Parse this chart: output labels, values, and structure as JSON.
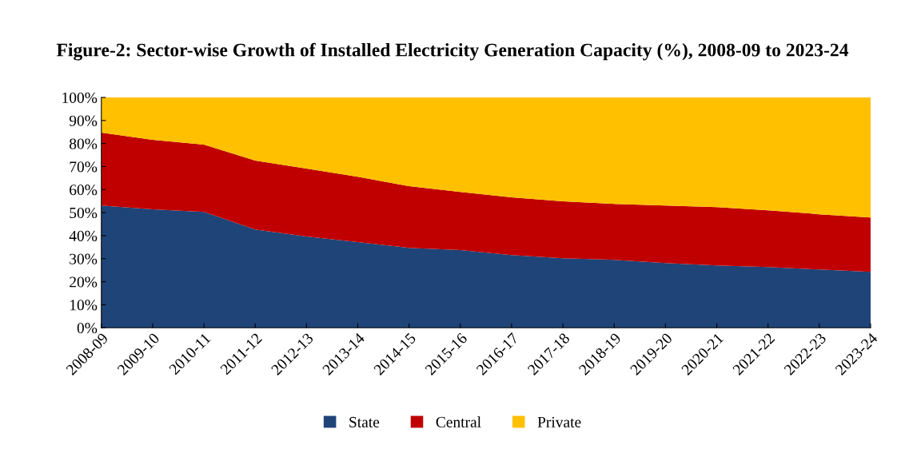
{
  "chart_data": {
    "type": "area",
    "stacked": true,
    "title": "Figure-2: Sector-wise Growth of Installed Electricity Generation Capacity (%), 2008-09 to 2023-24",
    "categories": [
      "2008-09",
      "2009-10",
      "2010-11",
      "2011-12",
      "2012-13",
      "2013-14",
      "2014-15",
      "2015-16",
      "2016-17",
      "2017-18",
      "2018-19",
      "2019-20",
      "2020-21",
      "2021-22",
      "2022-23",
      "2023-24"
    ],
    "series": [
      {
        "name": "State",
        "color": "#1f4478",
        "values": [
          53.1,
          51.4,
          50.3,
          42.7,
          39.6,
          37.2,
          34.7,
          33.7,
          31.6,
          30.2,
          29.5,
          28.1,
          27.1,
          26.4,
          25.3,
          24.3
        ]
      },
      {
        "name": "Central",
        "color": "#c00000",
        "values": [
          31.6,
          30.2,
          29.2,
          29.9,
          29.5,
          28.4,
          26.8,
          25.3,
          25.0,
          24.7,
          24.3,
          25.0,
          25.3,
          24.6,
          24.0,
          23.6
        ]
      },
      {
        "name": "Private",
        "color": "#ffc000",
        "values": [
          15.3,
          18.4,
          20.5,
          27.4,
          30.9,
          34.4,
          38.5,
          41.0,
          43.4,
          45.1,
          46.2,
          46.9,
          47.6,
          49.0,
          50.7,
          52.1
        ]
      }
    ],
    "ylim": [
      0,
      100
    ],
    "yticks": [
      {
        "value": 0,
        "label": "0%"
      },
      {
        "value": 10,
        "label": "10%"
      },
      {
        "value": 20,
        "label": "20%"
      },
      {
        "value": 30,
        "label": "30%"
      },
      {
        "value": 40,
        "label": "40%"
      },
      {
        "value": 50,
        "label": "50%"
      },
      {
        "value": 60,
        "label": "60%"
      },
      {
        "value": 70,
        "label": "70%"
      },
      {
        "value": 80,
        "label": "80%"
      },
      {
        "value": 90,
        "label": "90%"
      },
      {
        "value": 100,
        "label": "100%"
      }
    ],
    "grid": false,
    "legend": "bottom"
  }
}
